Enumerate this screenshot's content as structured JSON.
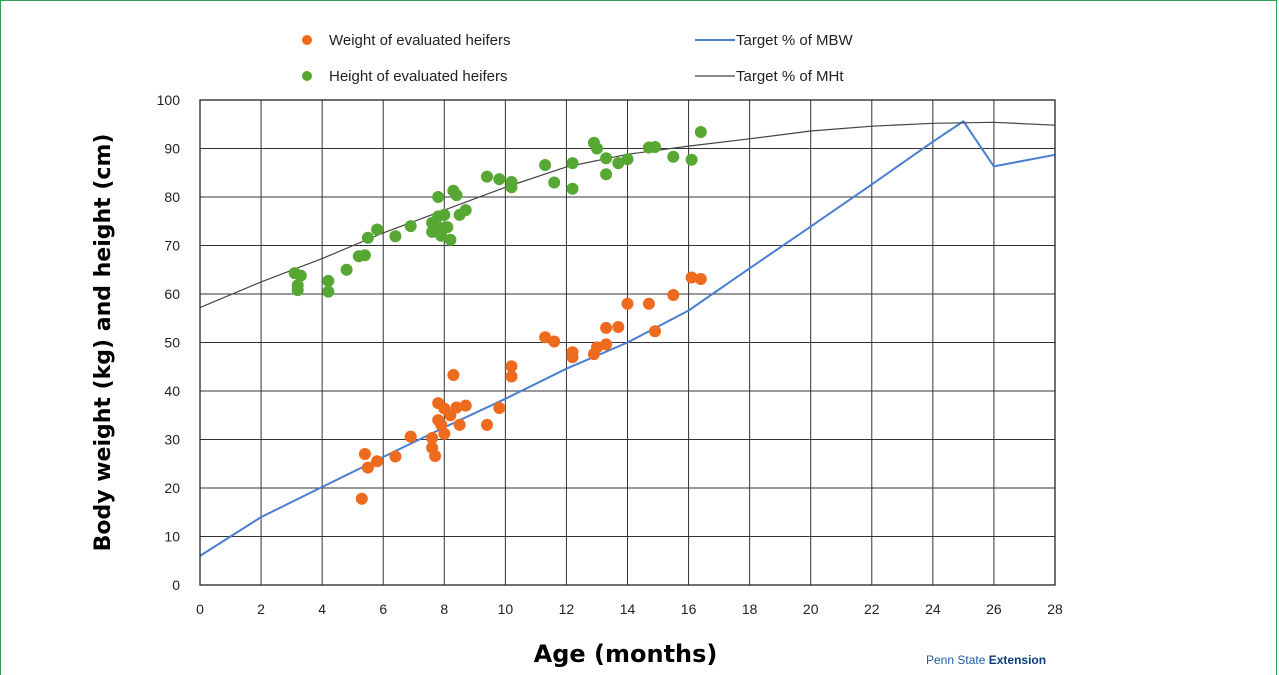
{
  "chart_data": {
    "type": "scatter",
    "xlabel": "Age (months)",
    "ylabel": "Body weight (kg) and height (cm)",
    "xlim": [
      0,
      28
    ],
    "ylim": [
      0,
      100
    ],
    "xticks": [
      0,
      2,
      4,
      6,
      8,
      10,
      12,
      14,
      16,
      18,
      20,
      22,
      24,
      26,
      28
    ],
    "yticks": [
      0,
      10,
      20,
      30,
      40,
      50,
      60,
      70,
      80,
      90,
      100
    ],
    "grid": true,
    "legend_position": "top",
    "series": [
      {
        "name": "Weight of evaluated heifers",
        "kind": "scatter",
        "color": "#ee6a1c",
        "points": [
          [
            5.3,
            17.8
          ],
          [
            5.4,
            27
          ],
          [
            5.5,
            24.2
          ],
          [
            5.8,
            25.5
          ],
          [
            6.4,
            26.5
          ],
          [
            6.9,
            30.6
          ],
          [
            7.6,
            30.3
          ],
          [
            7.6,
            28.3
          ],
          [
            7.7,
            26.6
          ],
          [
            7.8,
            37.5
          ],
          [
            7.8,
            34
          ],
          [
            7.9,
            33
          ],
          [
            8.0,
            36.4
          ],
          [
            8.0,
            31.2
          ],
          [
            8.2,
            35
          ],
          [
            8.3,
            43.3
          ],
          [
            8.4,
            36.6
          ],
          [
            8.5,
            33
          ],
          [
            8.7,
            37
          ],
          [
            9.4,
            33
          ],
          [
            9.8,
            36.5
          ],
          [
            10.2,
            45.1
          ],
          [
            10.2,
            43
          ],
          [
            11.3,
            51.1
          ],
          [
            11.6,
            50.2
          ],
          [
            12.2,
            48
          ],
          [
            12.2,
            47
          ],
          [
            12.9,
            47.6
          ],
          [
            13.0,
            49
          ],
          [
            13.3,
            53
          ],
          [
            13.3,
            49.6
          ],
          [
            13.7,
            53.2
          ],
          [
            14.0,
            58
          ],
          [
            14.7,
            58
          ],
          [
            14.9,
            52.3
          ],
          [
            15.5,
            59.8
          ],
          [
            16.1,
            63.4
          ],
          [
            16.4,
            63.1
          ]
        ]
      },
      {
        "name": "Height of evaluated heifers",
        "kind": "scatter",
        "color": "#56a833",
        "points": [
          [
            3.1,
            64.3
          ],
          [
            3.2,
            61.8
          ],
          [
            3.2,
            60.8
          ],
          [
            3.3,
            63.8
          ],
          [
            4.2,
            62.7
          ],
          [
            4.2,
            60.5
          ],
          [
            4.8,
            65
          ],
          [
            5.2,
            67.8
          ],
          [
            5.4,
            68
          ],
          [
            5.5,
            71.6
          ],
          [
            5.8,
            73.3
          ],
          [
            6.4,
            71.9
          ],
          [
            6.9,
            74
          ],
          [
            7.6,
            74.7
          ],
          [
            7.6,
            72.8
          ],
          [
            7.8,
            80
          ],
          [
            7.8,
            76
          ],
          [
            7.9,
            73.6
          ],
          [
            7.9,
            72
          ],
          [
            8.0,
            76.3
          ],
          [
            8.1,
            73.8
          ],
          [
            8.2,
            71.2
          ],
          [
            8.3,
            81.3
          ],
          [
            8.4,
            80.4
          ],
          [
            8.5,
            76.3
          ],
          [
            8.7,
            77.3
          ],
          [
            9.4,
            84.2
          ],
          [
            9.8,
            83.7
          ],
          [
            10.2,
            83.1
          ],
          [
            10.2,
            82
          ],
          [
            11.3,
            86.6
          ],
          [
            11.6,
            83
          ],
          [
            12.2,
            87
          ],
          [
            12.2,
            81.7
          ],
          [
            12.9,
            91.2
          ],
          [
            13.0,
            90
          ],
          [
            13.3,
            88
          ],
          [
            13.3,
            84.7
          ],
          [
            13.7,
            87
          ],
          [
            14.0,
            87.8
          ],
          [
            14.7,
            90.2
          ],
          [
            14.9,
            90.3
          ],
          [
            15.5,
            88.3
          ],
          [
            16.1,
            87.7
          ],
          [
            16.4,
            93.4
          ]
        ]
      },
      {
        "name": "Target % of MBW",
        "kind": "line",
        "color": "#4a7ed0",
        "points": [
          [
            0,
            6
          ],
          [
            2,
            14
          ],
          [
            4,
            20.2
          ],
          [
            6,
            26.4
          ],
          [
            8,
            32.5
          ],
          [
            10,
            38.4
          ],
          [
            12,
            44.6
          ],
          [
            14,
            50
          ],
          [
            16,
            56.6
          ],
          [
            18,
            65.3
          ],
          [
            20,
            73.9
          ],
          [
            22,
            82.6
          ],
          [
            24,
            91.4
          ],
          [
            25,
            95.6
          ],
          [
            26,
            86.3
          ],
          [
            28,
            88.7
          ]
        ]
      },
      {
        "name": "Target % of MHt",
        "kind": "line",
        "color": "#444444",
        "points": [
          [
            0,
            57.2
          ],
          [
            2,
            62.5
          ],
          [
            4,
            67.3
          ],
          [
            6,
            72.6
          ],
          [
            8,
            77.3
          ],
          [
            10,
            82
          ],
          [
            12,
            86.2
          ],
          [
            14,
            88.8
          ],
          [
            16,
            90.5
          ],
          [
            18,
            92
          ],
          [
            20,
            93.6
          ],
          [
            22,
            94.6
          ],
          [
            24,
            95.2
          ],
          [
            26,
            95.4
          ],
          [
            28,
            94.8
          ]
        ]
      }
    ]
  },
  "footer": {
    "credit_prefix": "Penn State ",
    "credit_bold": "Extension"
  }
}
